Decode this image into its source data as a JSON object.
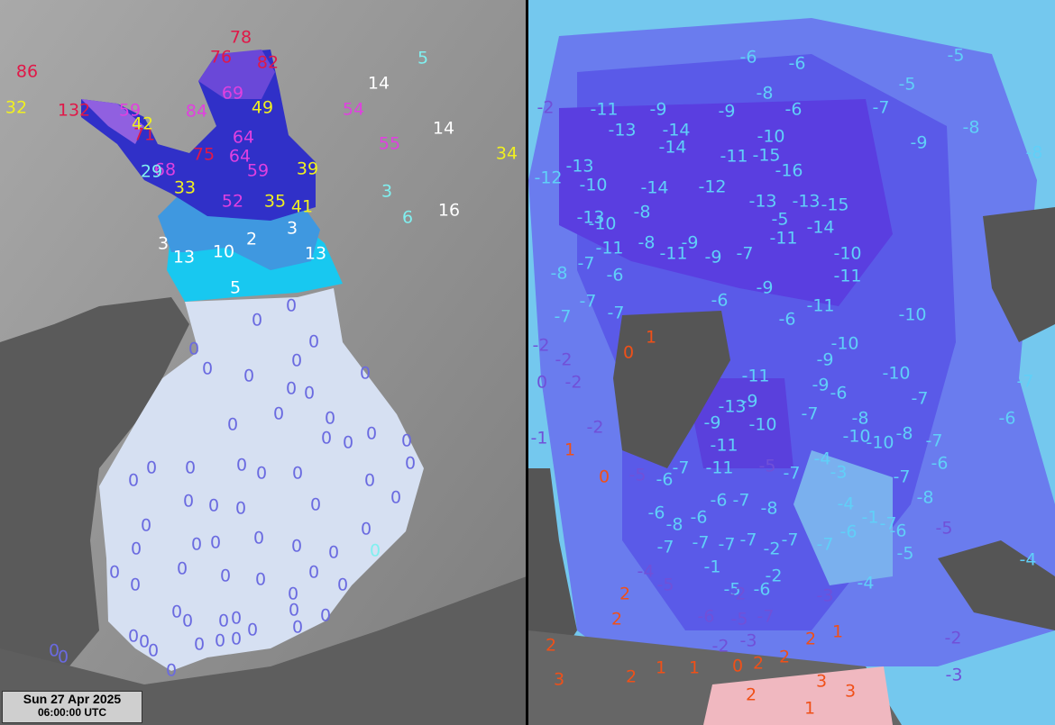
{
  "left_map": {
    "labels": [
      "78",
      "76",
      "82",
      "86",
      "132",
      "71",
      "75",
      "69",
      "64",
      "64",
      "59",
      "84",
      "59",
      "68",
      "52",
      "54",
      "55",
      "32",
      "42",
      "49",
      "39",
      "33",
      "35",
      "41",
      "34",
      "14",
      "14",
      "16",
      "13",
      "10",
      "13",
      "2",
      "3",
      "3",
      "5",
      "5",
      "3",
      "6",
      "29",
      "0",
      "0",
      "0",
      "0",
      "0",
      "0",
      "0",
      "0",
      "0",
      "0",
      "0",
      "0",
      "0",
      "0",
      "0",
      "0",
      "0",
      "0",
      "0",
      "0",
      "0",
      "0",
      "0",
      "0",
      "0",
      "0",
      "0",
      "0",
      "0",
      "0",
      "0",
      "0",
      "0",
      "0",
      "0",
      "0",
      "0",
      "0",
      "0",
      "0",
      "0",
      "0",
      "0",
      "0",
      "0",
      "0",
      "0",
      "0",
      "0",
      "0",
      "0",
      "0",
      "0",
      "0",
      "0",
      "0",
      "0",
      "0",
      "0",
      "0",
      "0",
      "0",
      "0",
      "0",
      "2"
    ]
  },
  "right_map": {
    "labels": [
      "-11",
      "-9",
      "-9",
      "-8",
      "-6",
      "-6",
      "-6",
      "-5",
      "-5",
      "-7",
      "-8",
      "-8",
      "-9",
      "-13",
      "-14",
      "-14",
      "-13",
      "-12",
      "-10",
      "-14",
      "-12",
      "-13",
      "-13",
      "-15",
      "-15",
      "-16",
      "-11",
      "-10",
      "-8",
      "-13",
      "-10",
      "-11",
      "-8",
      "-9",
      "-11",
      "-9",
      "-7",
      "-5",
      "-11",
      "-14",
      "-10",
      "-11",
      "-8",
      "-7",
      "-6",
      "-7",
      "-7",
      "-7",
      "-6",
      "-9",
      "-11",
      "-6",
      "-10",
      "-10",
      "-9",
      "-11",
      "-10",
      "-9",
      "-6",
      "-7",
      "-6",
      "-7",
      "-13",
      "-9",
      "-9",
      "-10",
      "-11",
      "-11",
      "-7",
      "-8",
      "-10",
      "-10",
      "-8",
      "-7",
      "-6",
      "-8",
      "-7",
      "-7",
      "-6",
      "-7",
      "-6",
      "-7",
      "-8",
      "-6",
      "-8",
      "-6",
      "-7",
      "-7",
      "-7",
      "-7",
      "-2",
      "-7",
      "-7",
      "-6",
      "-5",
      "-4",
      "-6",
      "-2",
      "-5",
      "-4",
      "-4",
      "-3",
      "-4",
      "-1",
      "-1",
      "-7",
      "-6",
      "-2",
      "-2",
      "-2",
      "0",
      "-2",
      "-2",
      "-1",
      "-4",
      "-5",
      "-3",
      "-5",
      "-2",
      "-3",
      "-2",
      "-5",
      "-5",
      "-6",
      "-7",
      "-2",
      "-3",
      "-5",
      "1",
      "0",
      "1",
      "0",
      "2",
      "2",
      "2",
      "3",
      "2",
      "1",
      "1",
      "0",
      "2",
      "2",
      "2",
      "1",
      "1",
      "3",
      "3",
      "2"
    ]
  },
  "timestamp": {
    "date": "Sun 27 Apr 2025",
    "time": "06:00:00 UTC"
  }
}
